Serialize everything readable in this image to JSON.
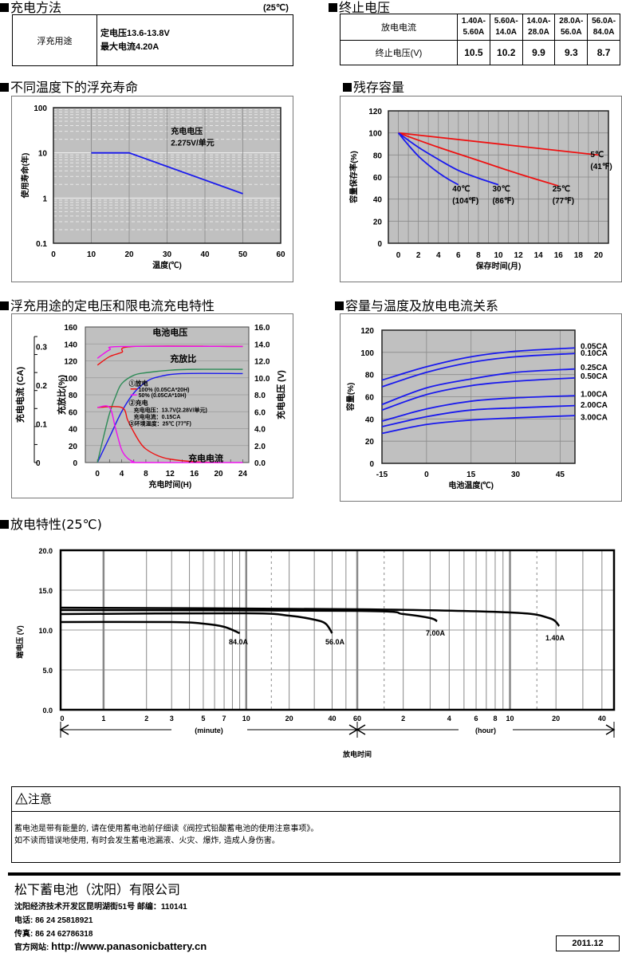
{
  "charge_method": {
    "title": "充电方法",
    "temp_note": "(25℃)",
    "row_label": "浮充用途",
    "line1": "定电压13.6-13.8V",
    "line2": "最大电流4.20A"
  },
  "cutoff_voltage": {
    "title": "终止电压",
    "header_label": "放电电流",
    "row_label": "终止电压(V)",
    "currents": [
      {
        "top": "1.40A-",
        "bottom": "5.60A"
      },
      {
        "top": "5.60A-",
        "bottom": "14.0A"
      },
      {
        "top": "14.0A-",
        "bottom": "28.0A"
      },
      {
        "top": "28.0A-",
        "bottom": "56.0A"
      },
      {
        "top": "56.0A-",
        "bottom": "84.0A"
      }
    ],
    "voltages": [
      "10.5",
      "10.2",
      "9.9",
      "9.3",
      "8.7"
    ]
  },
  "sections": {
    "life_title": "不同温度下的浮充寿命",
    "residual_title": "残存容量",
    "charge_char_title": "浮充用途的定电压和限电流充电特性",
    "cap_temp_title": "容量与温度及放电电流关系",
    "discharge_title": "放电特性(25℃)"
  },
  "chart_data": [
    {
      "id": "float-life",
      "type": "line",
      "title": "不同温度下的浮充寿命",
      "xlabel": "温度(℃)",
      "ylabel": "使用寿命(年)",
      "xlim": [
        0,
        60
      ],
      "ylim": [
        0.1,
        100
      ],
      "yscale": "log",
      "xticks": [
        "0",
        "10",
        "20",
        "30",
        "40",
        "50",
        "60"
      ],
      "yticks": [
        "0.1",
        "1",
        "10",
        "100"
      ],
      "annotation": [
        "充电电压",
        "2.275V/单元"
      ],
      "series": [
        {
          "name": "life",
          "color": "#1a1aee",
          "x": [
            10,
            20,
            50
          ],
          "y": [
            10,
            10,
            1.25
          ]
        }
      ]
    },
    {
      "id": "residual-capacity",
      "type": "line",
      "title": "残存容量",
      "xlabel": "保存时间(月)",
      "ylabel": "容量保存率(%)",
      "xlim": [
        -1,
        21
      ],
      "ylim": [
        0,
        120
      ],
      "xticks": [
        "0",
        "2",
        "4",
        "6",
        "8",
        "10",
        "12",
        "14",
        "16",
        "18",
        "20"
      ],
      "yticks": [
        "0",
        "20",
        "40",
        "60",
        "80",
        "100",
        "120"
      ],
      "series": [
        {
          "name": "5℃",
          "sub": "(41℉)",
          "color": "#ee1111",
          "x": [
            0,
            20
          ],
          "y": [
            100,
            80
          ]
        },
        {
          "name": "25℃",
          "sub": "(77℉)",
          "color": "#ee1111",
          "x": [
            0,
            4,
            8,
            12,
            16
          ],
          "y": [
            100,
            87,
            75,
            63,
            52
          ]
        },
        {
          "name": "30℃",
          "sub": "(86℉)",
          "color": "#1a1aee",
          "x": [
            0,
            2,
            4,
            6,
            8,
            10
          ],
          "y": [
            100,
            87,
            76,
            66,
            59,
            53
          ]
        },
        {
          "name": "40℃",
          "sub": "(104℉)",
          "color": "#1a1aee",
          "x": [
            0,
            1,
            2,
            3,
            4,
            5,
            6
          ],
          "y": [
            100,
            89,
            79,
            71,
            64,
            58,
            53
          ]
        }
      ]
    },
    {
      "id": "charge-characteristics",
      "type": "line",
      "title": "浮充用途的定电压和限电流充电特性",
      "xlabel": "充电时间(H)",
      "ylabel_left_outer": "充电电流 (CA)",
      "ylabel_left": "充放比(%)",
      "ylabel_right": "充电电压 (V)",
      "xlim": [
        -2,
        25
      ],
      "ylim": [
        0,
        160
      ],
      "xticks": [
        "0",
        "4",
        "8",
        "12",
        "16",
        "20",
        "24"
      ],
      "yticks": [
        "0",
        "20",
        "40",
        "60",
        "80",
        "100",
        "120",
        "140",
        "160"
      ],
      "yticks_right": [
        "0.0",
        "2.0",
        "4.0",
        "6.0",
        "8.0",
        "10.0",
        "12.0",
        "14.0",
        "16.0"
      ],
      "yticks_ca": [
        "0",
        "0.1",
        "0.2",
        "0.3"
      ],
      "labels": {
        "voltage": "电池电压",
        "ratio": "充放比",
        "current": "充电电流"
      },
      "legend": {
        "l1": "①放电",
        "l2": "100% (0.05CA*20H)",
        "l3": "50% (0.05CA*10H)",
        "l4": "②充电",
        "l5": "充电电压：13.7V(2.28V/单元)",
        "l6": "充电电流：0.15CA",
        "l7": "③环境温度：25℃ (77℉)"
      },
      "series": [
        {
          "name": "voltage-100",
          "color": "#ee1111",
          "x": [
            0,
            2,
            4,
            6,
            24
          ],
          "y": [
            115,
            125,
            130,
            137,
            137
          ]
        },
        {
          "name": "voltage-50",
          "color": "#ee11ee",
          "x": [
            0,
            2,
            4,
            24
          ],
          "y": [
            123,
            133,
            137,
            137
          ]
        },
        {
          "name": "ratio-100",
          "color": "#1a1aee",
          "x": [
            0,
            2,
            4,
            6,
            8,
            10,
            14,
            24
          ],
          "y": [
            0,
            30,
            60,
            82,
            95,
            101,
            105,
            105
          ]
        },
        {
          "name": "ratio-50",
          "color": "#2e8b57",
          "x": [
            0,
            1,
            2,
            3,
            4,
            6,
            8,
            12,
            16,
            24
          ],
          "y": [
            0,
            30,
            58,
            78,
            93,
            103,
            106,
            109,
            110,
            110
          ]
        },
        {
          "name": "current-100",
          "color": "#ee1111",
          "x": [
            0,
            4,
            5,
            6,
            7,
            8,
            10,
            12,
            16,
            20
          ],
          "y": [
            65,
            65,
            50,
            36,
            24,
            16,
            8,
            4,
            1,
            0
          ]
        },
        {
          "name": "current-50",
          "color": "#ee11ee",
          "x": [
            0,
            2,
            3,
            4,
            5,
            6,
            7,
            24
          ],
          "y": [
            65,
            65,
            40,
            15,
            5,
            1,
            0,
            0
          ]
        }
      ]
    },
    {
      "id": "capacity-temperature",
      "type": "line",
      "title": "容量与温度及放电电流关系",
      "xlabel": "电池温度(℃)",
      "ylabel": "容量(%)",
      "xlim": [
        -15,
        50
      ],
      "ylim": [
        0,
        120
      ],
      "xticks": [
        "-15",
        "0",
        "15",
        "30",
        "45"
      ],
      "yticks": [
        "0",
        "20",
        "40",
        "60",
        "80",
        "100",
        "120"
      ],
      "series": [
        {
          "name": "0.05CA",
          "color": "#1a1aee",
          "x": [
            -15,
            0,
            15,
            30,
            50
          ],
          "y": [
            75,
            87,
            96,
            101,
            104
          ]
        },
        {
          "name": "0.10CA",
          "color": "#1a1aee",
          "x": [
            -15,
            0,
            15,
            30,
            50
          ],
          "y": [
            69,
            82,
            91,
            96,
            99
          ]
        },
        {
          "name": "0.25CA",
          "color": "#1a1aee",
          "x": [
            -15,
            0,
            15,
            30,
            50
          ],
          "y": [
            53,
            68,
            76,
            82,
            85
          ]
        },
        {
          "name": "0.50CA",
          "color": "#1a1aee",
          "x": [
            -15,
            0,
            15,
            30,
            50
          ],
          "y": [
            48,
            62,
            70,
            74,
            77
          ]
        },
        {
          "name": "1.00CA",
          "color": "#1a1aee",
          "x": [
            -15,
            0,
            15,
            30,
            50
          ],
          "y": [
            38,
            49,
            56,
            59,
            61
          ]
        },
        {
          "name": "2.00CA",
          "color": "#1a1aee",
          "x": [
            -15,
            0,
            15,
            30,
            50
          ],
          "y": [
            33,
            42,
            48,
            50,
            52
          ]
        },
        {
          "name": "3.00CA",
          "color": "#1a1aee",
          "x": [
            -15,
            0,
            15,
            30,
            50
          ],
          "y": [
            27,
            35,
            39,
            41,
            43
          ]
        }
      ]
    },
    {
      "id": "discharge-characteristics",
      "type": "line",
      "title": "放电特性(25℃)",
      "xlabel": "放电时间",
      "ylabel": "端电压 (V)",
      "ylim": [
        0,
        20
      ],
      "yticks": [
        "0.0",
        "5.0",
        "10.0",
        "15.0",
        "20.0"
      ],
      "xticks_minute": [
        "0",
        "1",
        "2",
        "3",
        "5",
        "7",
        "10",
        "20",
        "40",
        "60"
      ],
      "xticks_hour": [
        "2",
        "4",
        "6",
        "8",
        "10",
        "20",
        "40"
      ],
      "unit_minute": "(minute)",
      "unit_hour": "(hour)",
      "series": [
        {
          "name": "84.0A",
          "unit": "minute",
          "x": [
            0,
            3,
            5,
            7,
            9
          ],
          "y": [
            11.0,
            11.0,
            10.8,
            10.4,
            9.6
          ]
        },
        {
          "name": "56.0A",
          "unit": "minute",
          "x": [
            0,
            10,
            20,
            30,
            36,
            40
          ],
          "y": [
            12.0,
            12.1,
            11.8,
            11.3,
            10.8,
            9.6
          ]
        },
        {
          "name": "7.00A",
          "unit": "minute",
          "x": [
            0,
            60,
            120,
            180,
            200
          ],
          "y": [
            12.5,
            12.4,
            12.0,
            11.5,
            11.1
          ]
        },
        {
          "name": "1.40A",
          "unit": "minute",
          "x": [
            0,
            60,
            600,
            1080,
            1260
          ],
          "y": [
            12.8,
            12.6,
            12.2,
            11.5,
            10.5
          ]
        }
      ]
    }
  ],
  "notice": {
    "title": "注意",
    "line1": "蓄电池是带有能量的, 请在使用蓄电池前仔细读《阀控式铅酸蓄电池的使用注意事项》。",
    "line2": "如不读而错误地使用, 有时会发生蓄电池漏液、火灾、爆炸, 造成人身伤害。"
  },
  "footer": {
    "company": "松下蓄电池（沈阳）有限公司",
    "address": "沈阳经济技术开发区昆明湖街51号 邮编：110141",
    "phone": "电话: 86 24 25818921",
    "fax": "传真: 86 24 62786318",
    "website_label": "官方网站:",
    "website": "http://www.panasonicbattery.cn",
    "date": "2011.12"
  }
}
